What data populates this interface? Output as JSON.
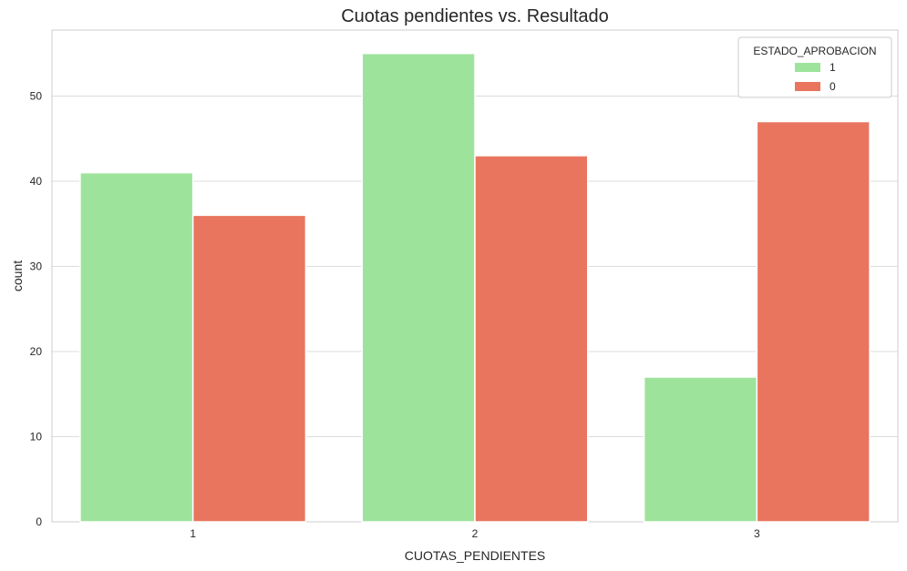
{
  "chart_data": {
    "type": "bar",
    "title": "Cuotas pendientes vs. Resultado",
    "xlabel": "CUOTAS_PENDIENTES",
    "ylabel": "count",
    "categories": [
      "1",
      "2",
      "3"
    ],
    "series": [
      {
        "name": "1",
        "values": [
          41,
          55,
          17
        ],
        "color": "#9ee39b"
      },
      {
        "name": "0",
        "values": [
          36,
          43,
          47
        ],
        "color": "#e9755f"
      }
    ],
    "ylim": [
      0,
      57.75
    ],
    "yticks": [
      0,
      10,
      20,
      30,
      40,
      50
    ],
    "grid": "y",
    "legend": {
      "title": "ESTADO_APROBACION",
      "placement": "top-right"
    }
  }
}
